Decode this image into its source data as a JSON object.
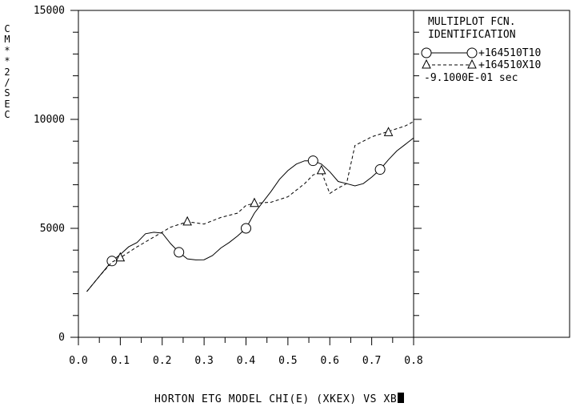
{
  "chart_data": {
    "type": "line",
    "title": "",
    "xlabel": "HORTON ETG MODEL CHI(E) (XKEX) VS XB",
    "ylabel": "CM**2/SEC",
    "xlim": [
      0.0,
      0.8
    ],
    "ylim": [
      0,
      15000
    ],
    "x_ticks": [
      "0.0",
      "0.1",
      "0.2",
      "0.3",
      "0.4",
      "0.5",
      "0.6",
      "0.7",
      "0.8"
    ],
    "y_ticks": [
      "0",
      "5000",
      "10000",
      "15000"
    ],
    "grid": false,
    "legend_position": "right",
    "legend_title": [
      "MULTIPLOT FCN.",
      "IDENTIFICATION"
    ],
    "legend_note": "-9.1000E-01 sec",
    "series": [
      {
        "name": "+164510T10",
        "style": "solid",
        "marker": "circle",
        "x": [
          0.02,
          0.05,
          0.08,
          0.1,
          0.12,
          0.14,
          0.16,
          0.18,
          0.2,
          0.22,
          0.24,
          0.26,
          0.28,
          0.3,
          0.32,
          0.34,
          0.36,
          0.38,
          0.4,
          0.42,
          0.44,
          0.46,
          0.48,
          0.5,
          0.52,
          0.54,
          0.56,
          0.58,
          0.6,
          0.62,
          0.64,
          0.66,
          0.68,
          0.7,
          0.72,
          0.74,
          0.76,
          0.78,
          0.8
        ],
        "y": [
          2100,
          2800,
          3500,
          3800,
          4150,
          4350,
          4750,
          4820,
          4780,
          4300,
          3900,
          3600,
          3550,
          3560,
          3750,
          4100,
          4350,
          4650,
          5000,
          5700,
          6200,
          6700,
          7250,
          7650,
          7950,
          8100,
          8100,
          7950,
          7600,
          7150,
          7050,
          6950,
          7050,
          7350,
          7700,
          8150,
          8550,
          8850,
          9150
        ],
        "markers": [
          [
            0.08,
            3500
          ],
          [
            0.24,
            3900
          ],
          [
            0.4,
            5000
          ],
          [
            0.56,
            8100
          ],
          [
            0.72,
            7700
          ]
        ]
      },
      {
        "name": "+164510X10",
        "style": "dashed",
        "marker": "triangle",
        "x": [
          0.02,
          0.05,
          0.08,
          0.1,
          0.14,
          0.18,
          0.22,
          0.26,
          0.3,
          0.34,
          0.38,
          0.4,
          0.42,
          0.46,
          0.5,
          0.54,
          0.56,
          0.58,
          0.6,
          0.62,
          0.64,
          0.66,
          0.7,
          0.74,
          0.78,
          0.8
        ],
        "y": [
          2100,
          2800,
          3450,
          3650,
          4150,
          4600,
          5050,
          5300,
          5200,
          5500,
          5700,
          6050,
          6150,
          6200,
          6450,
          7050,
          7450,
          7600,
          6600,
          6850,
          7050,
          8800,
          9200,
          9450,
          9700,
          9900
        ],
        "markers": [
          [
            0.1,
            3650
          ],
          [
            0.26,
            5300
          ],
          [
            0.42,
            6150
          ],
          [
            0.58,
            7650
          ],
          [
            0.74,
            9400
          ]
        ]
      }
    ]
  }
}
